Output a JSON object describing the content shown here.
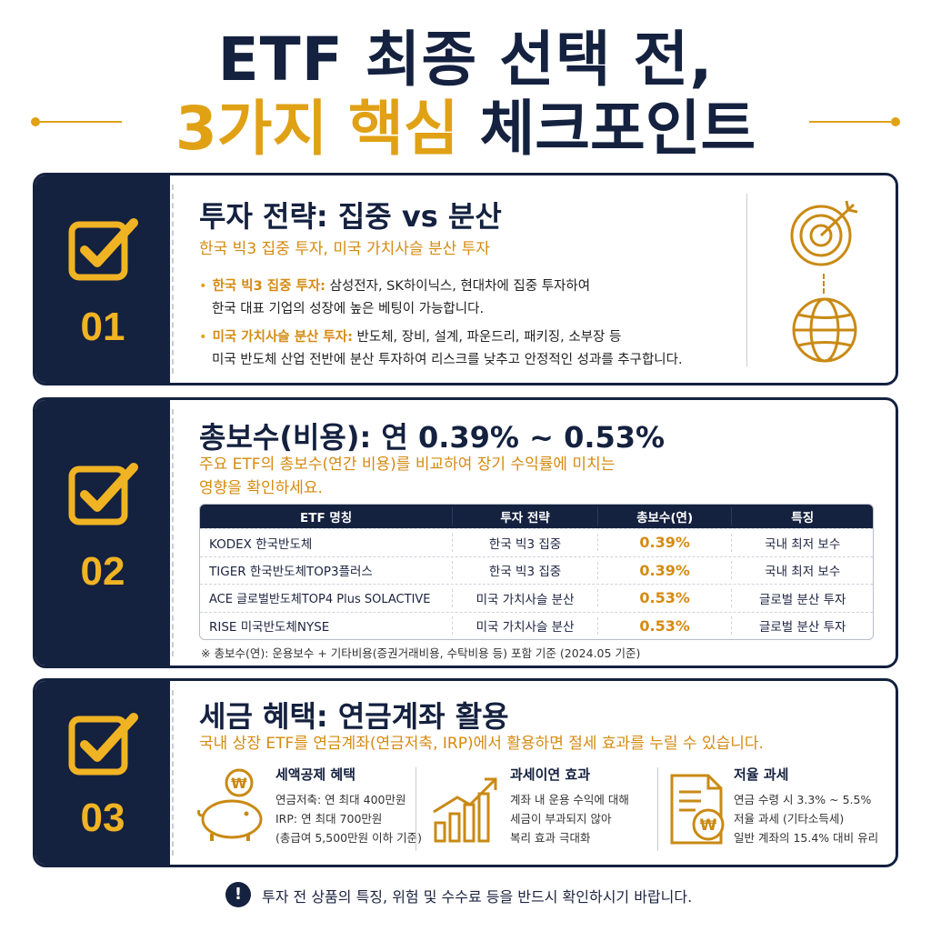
{
  "header": {
    "line1": "ETF 최종 선택 전,",
    "line2_highlight": "3가지 핵심",
    "line2_rest": " 체크포인트"
  },
  "colors": {
    "navy": "#14213f",
    "gold": "#e0a115",
    "orange_text": "#d58a10"
  },
  "cards": [
    {
      "number": "01",
      "title": "투자 전략: 집중 vs 분산",
      "subtitle": "한국 빅3 집중 투자, 미국 가치사슬 분산 투자",
      "bullets": [
        {
          "label": "한국 빅3 집중 투자:",
          "text": " 삼성전자, SK하이닉스, 현대차에 집중 투자하여",
          "cont": "한국 대표 기업의 성장에 높은 베팅이 가능합니다."
        },
        {
          "label": "미국 가치사슬 분산 투자:",
          "text": " 반도체, 장비, 설계, 파운드리, 패키징, 소부장 등",
          "cont": "미국 반도체 산업 전반에 분산 투자하여 리스크를 낮추고 안정적인 성과를 추구합니다."
        }
      ],
      "icons": [
        "target-icon",
        "globe-icon"
      ]
    },
    {
      "number": "02",
      "title": "총보수(비용): 연 0.39% ~ 0.53%",
      "subtitle_line1": "주요 ETF의 총보수(연간 비용)를 비교하여 장기 수익률에 미치는",
      "subtitle_line2": "영향을 확인하세요.",
      "table": {
        "headers": [
          "ETF 명칭",
          "투자 전략",
          "총보수(연)",
          "특징"
        ],
        "rows": [
          [
            "KODEX 한국반도체",
            "한국 빅3 집중",
            "0.39%",
            "국내 최저 보수"
          ],
          [
            "TIGER 한국반도체TOP3플러스",
            "한국 빅3 집중",
            "0.39%",
            "국내 최저 보수"
          ],
          [
            "ACE 글로벌반도체TOP4 Plus SOLACTIVE",
            "미국 가치사슬 분산",
            "0.53%",
            "글로벌 분산 투자"
          ],
          [
            "RISE 미국반도체NYSE",
            "미국 가치사슬 분산",
            "0.53%",
            "글로벌 분산 투자"
          ]
        ]
      },
      "note": "※ 총보수(연): 운용보수 + 기타비용(증권거래비용, 수탁비용 등) 포함 기준 (2024.05 기준)"
    },
    {
      "number": "03",
      "title": "세금 혜택: 연금계좌 활용",
      "subtitle": "국내 상장 ETF를 연금계좌(연금저축, IRP)에서 활용하면 절세 효과를 누릴 수 있습니다.",
      "benefits": [
        {
          "icon": "piggy-bank-icon",
          "title": "세액공제 혜택",
          "lines": [
            "연금저축: 연 최대 400만원",
            "IRP: 연 최대 700만원",
            "(총급여 5,500만원 이하 기준)"
          ]
        },
        {
          "icon": "growth-chart-icon",
          "title": "과세이연 효과",
          "lines": [
            "계좌 내 운용 수익에 대해",
            "세금이 부과되지 않아",
            "복리 효과 극대화"
          ]
        },
        {
          "icon": "tax-document-icon",
          "title": "저율 과세",
          "lines": [
            "연금 수령 시 3.3% ~ 5.5%",
            "저율 과세 (기타소득세)",
            "일반 계좌의 15.4% 대비 유리"
          ]
        }
      ]
    }
  ],
  "footer": {
    "alert_symbol": "!",
    "text": "투자 전 상품의 특징, 위험 및 수수료 등을 반드시 확인하시기 바랍니다."
  }
}
